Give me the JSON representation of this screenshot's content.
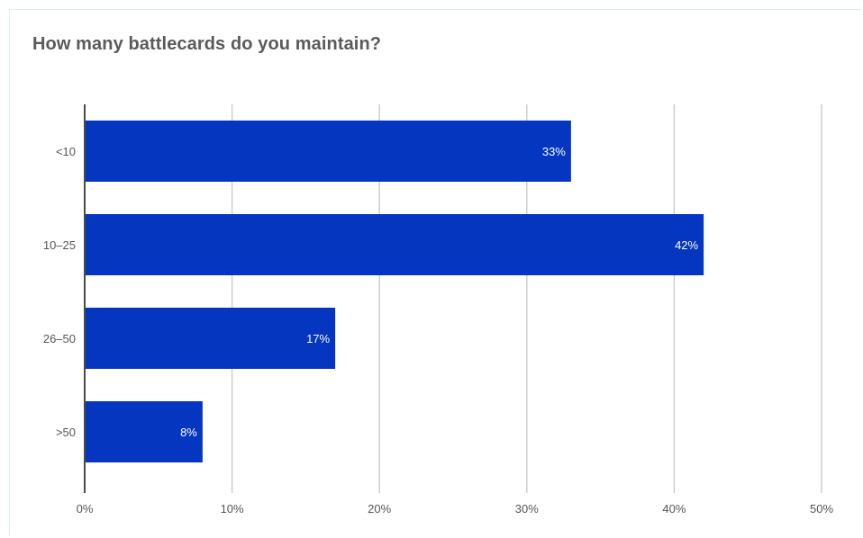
{
  "chart_data": {
    "type": "bar",
    "orientation": "horizontal",
    "title": "How many battlecards do you maintain?",
    "categories": [
      "<10",
      "10–25",
      "26–50",
      ">50"
    ],
    "values": [
      33,
      42,
      17,
      8
    ],
    "value_labels": [
      "33%",
      "42%",
      "17%",
      "8%"
    ],
    "xlim": [
      0,
      50
    ],
    "x_ticks": [
      0,
      10,
      20,
      30,
      40,
      50
    ],
    "x_tick_labels": [
      "0%",
      "10%",
      "20%",
      "30%",
      "40%",
      "50%"
    ],
    "xlabel": "",
    "ylabel": "",
    "grid": "vertical",
    "legend": "none"
  },
  "colors": {
    "bar": "#0536bf",
    "bar_label": "#ffffff",
    "grid": "#c8c8c8",
    "axis": "#4a4a4a",
    "tick_text": "#555555",
    "title": "#5a5a5a"
  }
}
